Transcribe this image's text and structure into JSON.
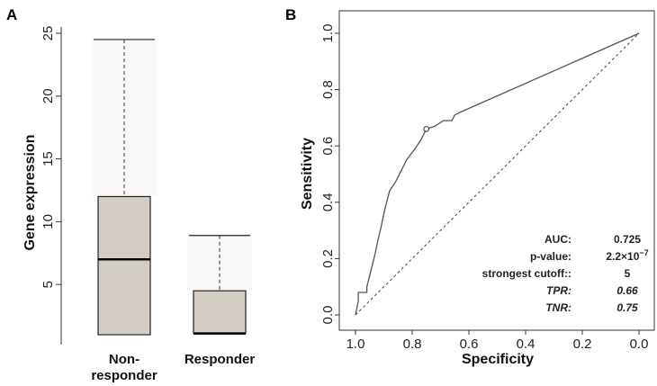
{
  "chart_data": [
    {
      "panel": "A",
      "type": "box",
      "ylabel": "Gene expression",
      "ylim": [
        0,
        25.5
      ],
      "yticks": [
        5,
        10,
        15,
        20,
        25
      ],
      "categories": [
        "Non-responder",
        "Responder"
      ],
      "category_lines": [
        [
          "Non-",
          "responder"
        ],
        [
          "Responder"
        ]
      ],
      "boxes": [
        {
          "name": "Non-responder",
          "whisker_low": 1,
          "q1": 1,
          "median": 7,
          "q3": 12,
          "whisker_high": 24.5
        },
        {
          "name": "Responder",
          "whisker_low": 1.1,
          "q1": 1.1,
          "median": 1.1,
          "q3": 4.5,
          "whisker_high": 8.9
        }
      ]
    },
    {
      "panel": "B",
      "type": "line",
      "xlabel": "Specificity",
      "ylabel": "Sensitivity",
      "xlim": [
        1.0,
        0.0
      ],
      "ylim": [
        0.0,
        1.0
      ],
      "xticks": [
        "1.0",
        "0.8",
        "0.6",
        "0.4",
        "0.2",
        "0.0"
      ],
      "yticks": [
        "0.0",
        "0.2",
        "0.4",
        "0.6",
        "0.8",
        "1.0"
      ],
      "roc_curve": {
        "specificity": [
          1.0,
          0.99,
          0.99,
          0.96,
          0.96,
          0.95,
          0.94,
          0.93,
          0.92,
          0.91,
          0.9,
          0.89,
          0.88,
          0.86,
          0.84,
          0.82,
          0.79,
          0.77,
          0.75,
          0.72,
          0.69,
          0.66,
          0.65,
          0.63,
          0.0
        ],
        "sensitivity": [
          0.0,
          0.05,
          0.08,
          0.08,
          0.1,
          0.14,
          0.18,
          0.22,
          0.27,
          0.31,
          0.36,
          0.4,
          0.44,
          0.47,
          0.51,
          0.55,
          0.59,
          0.62,
          0.66,
          0.67,
          0.69,
          0.69,
          0.71,
          0.72,
          1.0
        ]
      },
      "reference_line": {
        "specificity": [
          1.0,
          0.0
        ],
        "sensitivity": [
          0.0,
          1.0
        ]
      },
      "optimal_point": {
        "specificity": 0.75,
        "sensitivity": 0.66
      },
      "stats": [
        {
          "label": "AUC:",
          "value": "0.725",
          "italic": false
        },
        {
          "label": "p-value:",
          "value": "2.2×10",
          "exponent": "−7",
          "italic": false
        },
        {
          "label": "strongest cutoff::",
          "value": "5",
          "italic": false
        },
        {
          "label": "TPR:",
          "value": "0.66",
          "italic": true
        },
        {
          "label": "TNR:",
          "value": "0.75",
          "italic": true
        }
      ]
    }
  ]
}
